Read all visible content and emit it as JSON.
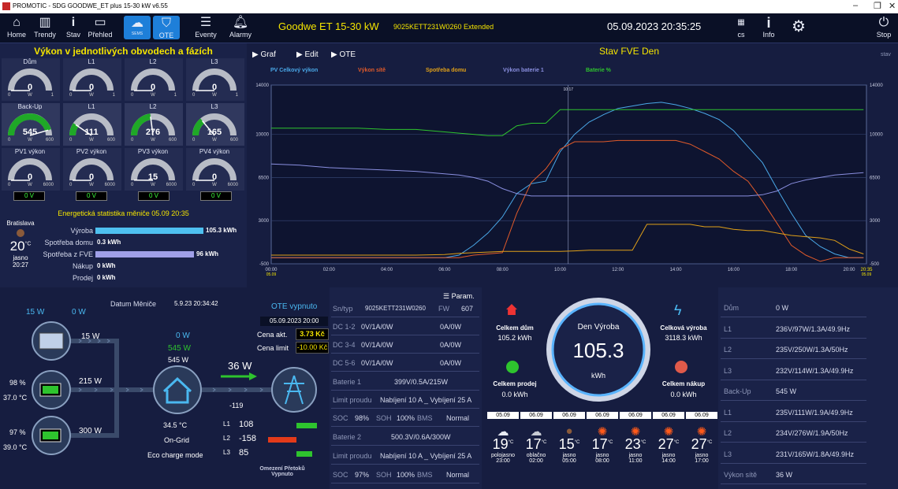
{
  "titlebar": {
    "title": "PROMOTIC - SDG GOODWE_ET plus 15-30 kW  v6.55"
  },
  "toolbar": {
    "home": "Home",
    "trendy": "Trendy",
    "stav": "Stav",
    "prehled": "Přehled",
    "sems": "SEMS",
    "ote": "OTE",
    "eventy": "Eventy",
    "alarmy": "Alarmy",
    "title": "Goodwe ET 15-30 kW",
    "serial": "9025KETT231W0260 Extended",
    "datetime": "05.09.2023 20:35:25",
    "lang": "cs",
    "info": "Info",
    "stop": "Stop"
  },
  "left": {
    "title": "Výkon v jednotlivých obvodech a fázích",
    "gauges": [
      {
        "label": "Dům",
        "value": "0",
        "unit": "W",
        "min": "0",
        "max": "1",
        "fill": 0,
        "color": "#9aa0a8"
      },
      {
        "label": "L1",
        "value": "0",
        "unit": "W",
        "min": "0",
        "max": "1",
        "fill": 0,
        "color": "#9aa0a8"
      },
      {
        "label": "L2",
        "value": "0",
        "unit": "W",
        "min": "0",
        "max": "1",
        "fill": 0,
        "color": "#9aa0a8"
      },
      {
        "label": "L3",
        "value": "0",
        "unit": "W",
        "min": "0",
        "max": "1",
        "fill": 0,
        "color": "#9aa0a8"
      },
      {
        "label": "Back-Up",
        "value": "545",
        "unit": "W",
        "min": "0",
        "max": "600",
        "fill": 0.91,
        "color": "#1fa827"
      },
      {
        "label": "L1",
        "value": "111",
        "unit": "W",
        "min": "0",
        "max": "600",
        "fill": 0.19,
        "color": "#1fa827"
      },
      {
        "label": "L2",
        "value": "276",
        "unit": "W",
        "min": "0",
        "max": "600",
        "fill": 0.46,
        "color": "#1fa827"
      },
      {
        "label": "L3",
        "value": "165",
        "unit": "W",
        "min": "0",
        "max": "600",
        "fill": 0.28,
        "color": "#1fa827"
      },
      {
        "label": "PV1 výkon",
        "value": "0",
        "unit": "W",
        "min": "0",
        "max": "6000",
        "fill": 0,
        "color": "#9aa0a8"
      },
      {
        "label": "PV2 výkon",
        "value": "0",
        "unit": "W",
        "min": "0",
        "max": "6000",
        "fill": 0,
        "color": "#9aa0a8"
      },
      {
        "label": "PV3 výkon",
        "value": "15",
        "unit": "W",
        "min": "0",
        "max": "6000",
        "fill": 0.003,
        "color": "#9aa0a8"
      },
      {
        "label": "PV4 výkon",
        "value": "0",
        "unit": "W",
        "min": "0",
        "max": "6000",
        "fill": 0,
        "color": "#9aa0a8"
      }
    ],
    "pv_voltages": [
      "0 V",
      "0 V",
      "0 V",
      "0 V"
    ],
    "stats_title": "Energetická statistika měniče  05.09 20:35",
    "weather": {
      "city": "Bratislava",
      "temp": "20",
      "unit": "°C",
      "cond": "jasno",
      "time": "20:27"
    },
    "stats": [
      {
        "label": "Výroba",
        "value": "105.3 kWh",
        "fill": 1.0,
        "color": "#4ec0f0"
      },
      {
        "label": "Spotřeba domu",
        "value": "0.3 kWh",
        "fill": 0.0,
        "color": "#4ec0f0"
      },
      {
        "label": "Spotřeba z FVE",
        "value": "96 kWh",
        "fill": 0.91,
        "color": "#a0a0e8"
      },
      {
        "label": "Nákup",
        "value": "0 kWh",
        "fill": 0,
        "color": "#4ec0f0"
      },
      {
        "label": "Prodej",
        "value": "0 kWh",
        "fill": 0,
        "color": "#4ec0f0"
      }
    ]
  },
  "chart_panel": {
    "graf": "Graf",
    "edit": "Edit",
    "ote": "OTE",
    "title": "Stav FVE Den",
    "stav": "stav"
  },
  "chart_data": {
    "type": "line",
    "xlabel": "",
    "ylabel": "",
    "ylim": [
      -500,
      14000
    ],
    "yticks": [
      "14000",
      "10000",
      "6500",
      "3000",
      "-500"
    ],
    "xticks": [
      "00:00",
      "02:00",
      "04:00",
      "06:00",
      "08:00",
      "10:00",
      "12:00",
      "14:00",
      "16:00",
      "18:00",
      "20:00"
    ],
    "x_start_label": "00:00",
    "x_start_date": "05.09",
    "x_end_label": "20:35",
    "x_end_date": "05.09",
    "cursor_label": "10:17",
    "x": [
      0,
      1,
      2,
      3,
      4,
      5,
      6,
      6.5,
      7,
      7.5,
      8,
      8.5,
      9,
      9.5,
      10,
      10.5,
      11,
      11.5,
      12,
      12.5,
      13,
      13.5,
      14,
      14.5,
      15,
      15.5,
      16,
      16.5,
      17,
      17.5,
      18,
      18.5,
      19,
      19.5,
      20,
      20.5
    ],
    "series": [
      {
        "name": "PV Celkový výkon",
        "color": "#4aa8e8",
        "values": [
          0,
          0,
          0,
          0,
          0,
          0,
          0,
          200,
          1000,
          2000,
          3300,
          5200,
          6000,
          6200,
          8600,
          10000,
          11000,
          11600,
          12100,
          12300,
          12500,
          12600,
          12400,
          12100,
          11700,
          11200,
          10300,
          9000,
          7700,
          5600,
          3600,
          1800,
          900,
          300,
          0,
          0
        ]
      },
      {
        "name": "Výkon sítě",
        "color": "#e05a2a",
        "values": [
          0,
          0,
          0,
          0,
          0,
          0,
          0,
          0,
          200,
          300,
          400,
          3600,
          6100,
          7200,
          8800,
          9400,
          9400,
          9400,
          9500,
          9500,
          9500,
          9500,
          9500,
          9200,
          8600,
          8000,
          7000,
          6200,
          4600,
          2800,
          1000,
          200,
          -300,
          0,
          0,
          0
        ]
      },
      {
        "name": "Spotřeba domu",
        "color": "#e0a018",
        "values": [
          200,
          200,
          200,
          200,
          200,
          200,
          250,
          350,
          400,
          450,
          500,
          500,
          500,
          500,
          500,
          550,
          600,
          600,
          600,
          600,
          2700,
          2700,
          2700,
          2700,
          2500,
          2500,
          2300,
          2200,
          2200,
          2000,
          1800,
          1700,
          1600,
          1400,
          700,
          300
        ]
      },
      {
        "name": "Výkon baterie 1",
        "color": "#8a8fe0",
        "values": [
          7600,
          7500,
          7300,
          7200,
          7100,
          7000,
          6800,
          6700,
          6500,
          6200,
          5600,
          5200,
          5000,
          5000,
          5000,
          5000,
          5000,
          5000,
          5000,
          5000,
          5000,
          5000,
          5000,
          5000,
          5000,
          5000,
          5000,
          5000,
          5100,
          5400,
          6000,
          6300,
          6500,
          6700,
          6800,
          6900
        ]
      },
      {
        "name": "Baterie %",
        "color": "#2ec42e",
        "values": [
          10500,
          10500,
          10500,
          10500,
          10400,
          10400,
          10200,
          10100,
          10000,
          9900,
          9900,
          10700,
          10900,
          10900,
          12000,
          12000,
          12000,
          12000,
          12000,
          12000,
          12000,
          12000,
          12000,
          12000,
          12000,
          12000,
          12000,
          12000,
          12000,
          12000,
          12000,
          12000,
          12000,
          12000,
          12000,
          12000
        ]
      }
    ]
  },
  "flow": {
    "datum_label": "Datum Měniče",
    "datum_value": "5.9.23 20:34:42",
    "pv_top1": "15 W",
    "pv_top2": "0 W",
    "pv": "15 W",
    "bat1": "215 W",
    "bat1_soc": "98 %",
    "bat1_temp": "37.0 °C",
    "bat2": "300 W",
    "bat2_soc": "97 %",
    "bat2_temp": "39.0 °C",
    "house_w1": "0 W",
    "house_w2": "545 W",
    "house_w3": "545 W",
    "house_temp": "34.5 °C",
    "mode1": "On-Grid",
    "mode2": "Eco charge mode",
    "grid": "36 W",
    "grid_val": "-119",
    "phases": [
      {
        "l": "L1",
        "v": "108"
      },
      {
        "l": "L2",
        "v": "-158"
      },
      {
        "l": "L3",
        "v": "85"
      }
    ],
    "limit": "Omezení Přetoků Vypnuto"
  },
  "ote": {
    "title": "OTE vypnuto",
    "date": "05.09.2023 20:00",
    "cena_akt_label": "Cena akt.",
    "cena_akt": "3.73 Kč",
    "cena_lim_label": "Cena limit",
    "cena_lim": "-10.00 Kč"
  },
  "inv": {
    "param": "Param.",
    "snlabel": "Sn/typ",
    "sn": "9025KETT231W0260",
    "fwlabel": "FW",
    "fw": "607",
    "rows": [
      {
        "a": "DC 1-2",
        "b": "0V/1A/0W",
        "c": "0A/0W"
      },
      {
        "a": "DC 3-4",
        "b": "0V/1A/0W",
        "c": "0A/0W"
      },
      {
        "a": "DC 5-6",
        "b": "0V/1A/0W",
        "c": "0A/0W"
      }
    ],
    "bat1_label": "Baterie 1",
    "bat1_val": "399V/0.5A/215W",
    "lim_label": "Limit proudu",
    "lim_val": "Nabíjení 10 A _ Vybíjení 25 A",
    "soc_label": "SOC",
    "soc1": "98%",
    "soh_label": "SOH",
    "soh1": "100%",
    "bms_label": "BMS",
    "bms1": "Normal",
    "bat2_label": "Baterie 2",
    "bat2_val": "500.3V/0.6A/300W",
    "lim2_val": "Nabíjení 10 A _ Vybíjení 25 A",
    "soc2": "97%",
    "soh2": "100%",
    "bms2": "Normal"
  },
  "summary": {
    "dum_label": "Celkem dům",
    "dum": "105.2 kWh",
    "vyr_label": "Celková výroba",
    "vyr": "3118.3 kWh",
    "prod_label": "Celkem prodej",
    "prod": "0.0 kWh",
    "nak_label": "Celkem nákup",
    "nak": "0.0 kWh",
    "den_label": "Den Výroba",
    "den": "105.3",
    "den_unit": "kWh"
  },
  "forecast": [
    {
      "d": "05.09",
      "t": "19",
      "c": "polojasno",
      "h": "23:00",
      "icon": "cloud-sun-icon"
    },
    {
      "d": "06.09",
      "t": "17",
      "c": "oblačno",
      "h": "02:00",
      "icon": "cloud-icon"
    },
    {
      "d": "06.09",
      "t": "15",
      "c": "jasno",
      "h": "05:00",
      "icon": "moon-icon"
    },
    {
      "d": "06.09",
      "t": "17",
      "c": "jasno",
      "h": "08:00",
      "icon": "sun-icon"
    },
    {
      "d": "06.09",
      "t": "23",
      "c": "jasno",
      "h": "11:00",
      "icon": "sun-icon"
    },
    {
      "d": "06.09",
      "t": "27",
      "c": "jasno",
      "h": "14:00",
      "icon": "sun-icon"
    },
    {
      "d": "06.09",
      "t": "27",
      "c": "jasno",
      "h": "17:00",
      "icon": "sun-icon"
    }
  ],
  "right_table": [
    {
      "l": "Dům",
      "v": "0 W"
    },
    {
      "l": "L1",
      "v": "236V/97W/1.3A/49.9Hz"
    },
    {
      "l": "L2",
      "v": "235V/250W/1.3A/50Hz"
    },
    {
      "l": "L3",
      "v": "232V/114W/1.3A/49.9Hz"
    },
    {
      "l": "Back-Up",
      "v": "545 W"
    },
    {
      "l": "L1",
      "v": "235V/111W/1.9A/49.9Hz"
    },
    {
      "l": "L2",
      "v": "234V/276W/1.9A/50Hz"
    },
    {
      "l": "L3",
      "v": "231V/165W/1.8A/49.9Hz"
    },
    {
      "l": "Výkon sítě",
      "v": "36 W"
    }
  ]
}
